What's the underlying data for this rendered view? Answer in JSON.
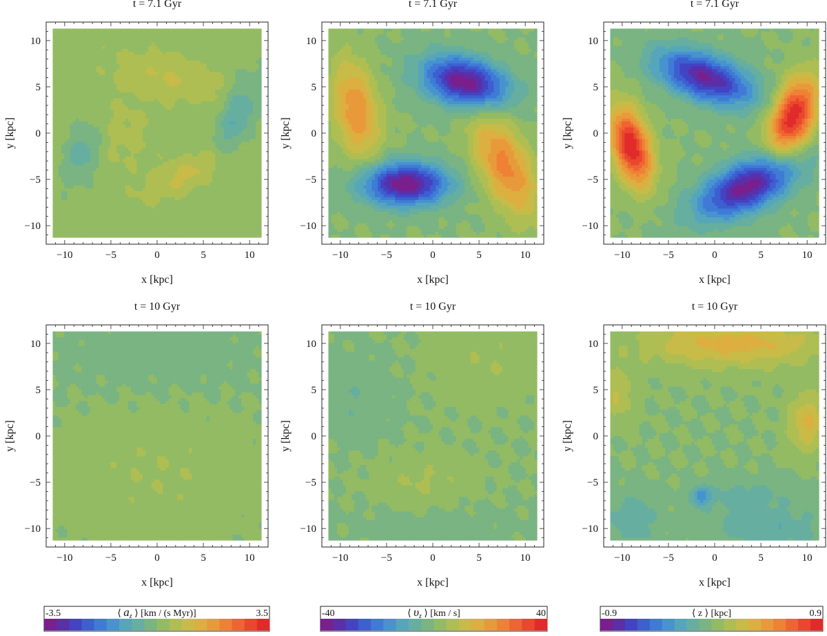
{
  "chart_data": {
    "type": "heatmap",
    "description_panels": "2 rows x 3 columns of contour maps of a galactic disc",
    "x_axis": {
      "label": "x [kpc]",
      "range": [
        -12,
        12
      ],
      "ticks": [
        -10,
        -5,
        0,
        5,
        10
      ]
    },
    "y_axis": {
      "label": "y [kpc]",
      "range": [
        -12,
        12
      ],
      "ticks": [
        -10,
        -5,
        0,
        5,
        10
      ]
    },
    "rows": [
      {
        "time_label": "t = 7.1 Gyr"
      },
      {
        "time_label": "t = 10 Gyr"
      }
    ],
    "columns": [
      {
        "quantity": "a_z",
        "colorbar": {
          "label_pre": "⟨ ",
          "symbol": "a",
          "subscript": "z",
          "label_post": " ⟩ [km / (s Myr)]",
          "min_label": "-3.5",
          "max_label": "3.5",
          "range": [
            -3.5,
            3.5
          ]
        }
      },
      {
        "quantity": "v_z",
        "colorbar": {
          "label_pre": "⟨ ",
          "symbol": "υ",
          "subscript": "z",
          "label_post": " ⟩ [km / s]",
          "min_label": "-40",
          "max_label": "40",
          "range": [
            -40,
            40
          ]
        }
      },
      {
        "quantity": "z",
        "colorbar": {
          "label_pre": "⟨ z ⟩ [kpc]",
          "symbol": "",
          "subscript": "",
          "label_post": "",
          "min_label": "-0.9",
          "max_label": "0.9",
          "range": [
            -0.9,
            0.9
          ]
        }
      }
    ],
    "colormap": [
      "#7a1f8e",
      "#5b2fa8",
      "#4343c4",
      "#3d5fd0",
      "#3f7bd6",
      "#4793cf",
      "#56a6bb",
      "#66aea0",
      "#79b482",
      "#93bb64",
      "#afbe52",
      "#c8bb48",
      "#ddae40",
      "#e89a3b",
      "#ef8135",
      "#ef6431",
      "#e9472e",
      "#e12b2a"
    ],
    "panels": [
      {
        "row": 0,
        "col": 0,
        "level": 0.05,
        "features": [
          {
            "cx": 8.7,
            "cy": 2.0,
            "sx": 1.3,
            "sy": 3.2,
            "rot": -20,
            "amp": -0.28
          },
          {
            "cx": -8.0,
            "cy": -2.0,
            "sx": 1.3,
            "sy": 2.5,
            "rot": -20,
            "amp": -0.24
          },
          {
            "cx": 1.5,
            "cy": 6.0,
            "sx": 4.5,
            "sy": 1.7,
            "rot": -15,
            "amp": 0.17
          },
          {
            "cx": 3.0,
            "cy": -4.5,
            "sx": 3.5,
            "sy": 1.3,
            "rot": 25,
            "amp": 0.2
          },
          {
            "cx": -4.0,
            "cy": 0.0,
            "sx": 2.5,
            "sy": 3.0,
            "rot": 0,
            "amp": 0.1
          }
        ]
      },
      {
        "row": 0,
        "col": 1,
        "level": 0.0,
        "features": [
          {
            "cx": 3.5,
            "cy": 5.5,
            "sx": 3.2,
            "sy": 1.8,
            "rot": -15,
            "amp": -1.0
          },
          {
            "cx": -3.0,
            "cy": -5.5,
            "sx": 3.2,
            "sy": 1.6,
            "rot": 0,
            "amp": -1.0
          },
          {
            "cx": -8.3,
            "cy": 2.5,
            "sx": 1.7,
            "sy": 3.8,
            "rot": 10,
            "amp": 0.55
          },
          {
            "cx": 7.8,
            "cy": -3.5,
            "sx": 1.9,
            "sy": 4.2,
            "rot": 25,
            "amp": 0.6
          }
        ]
      },
      {
        "row": 0,
        "col": 2,
        "level": 0.0,
        "features": [
          {
            "cx": -9.0,
            "cy": -1.5,
            "sx": 1.4,
            "sy": 3.0,
            "rot": 15,
            "amp": 1.0
          },
          {
            "cx": 8.5,
            "cy": 1.8,
            "sx": 1.6,
            "sy": 3.0,
            "rot": -20,
            "amp": 1.0
          },
          {
            "cx": -1.0,
            "cy": 6.0,
            "sx": 3.8,
            "sy": 1.7,
            "rot": -20,
            "amp": -0.9
          },
          {
            "cx": 3.5,
            "cy": -5.8,
            "sx": 4.0,
            "sy": 1.8,
            "rot": 25,
            "amp": -0.95
          }
        ]
      },
      {
        "row": 1,
        "col": 0,
        "level": 0.0,
        "features": [
          {
            "cx": 0.0,
            "cy": -4.0,
            "sx": 8.0,
            "sy": 5.0,
            "rot": 0,
            "amp": 0.1
          },
          {
            "cx": 0.0,
            "cy": 8.5,
            "sx": 9.0,
            "sy": 3.5,
            "rot": 0,
            "amp": -0.05
          }
        ]
      },
      {
        "row": 1,
        "col": 1,
        "level": 0.0,
        "features": [
          {
            "cx": 6.0,
            "cy": 8.0,
            "sx": 4.0,
            "sy": 3.0,
            "rot": 0,
            "amp": 0.1
          },
          {
            "cx": -1.0,
            "cy": -5.0,
            "sx": 3.5,
            "sy": 2.0,
            "rot": 0,
            "amp": 0.12
          },
          {
            "cx": -8.0,
            "cy": 4.0,
            "sx": 2.5,
            "sy": 3.0,
            "rot": 0,
            "amp": -0.1
          },
          {
            "cx": 0.0,
            "cy": -10.0,
            "sx": 6.0,
            "sy": 2.0,
            "rot": 0,
            "amp": -0.06
          }
        ]
      },
      {
        "row": 1,
        "col": 2,
        "level": 0.0,
        "features": [
          {
            "cx": 2.0,
            "cy": 10.0,
            "sx": 7.0,
            "sy": 1.8,
            "rot": 0,
            "amp": 0.38
          },
          {
            "cx": 10.0,
            "cy": 1.5,
            "sx": 1.4,
            "sy": 2.2,
            "rot": 0,
            "amp": 0.35
          },
          {
            "cx": -10.5,
            "cy": 4.5,
            "sx": 1.3,
            "sy": 2.0,
            "rot": 0,
            "amp": 0.22
          },
          {
            "cx": -1.5,
            "cy": -6.5,
            "sx": 0.7,
            "sy": 0.7,
            "rot": 0,
            "amp": -0.4
          },
          {
            "cx": 6.0,
            "cy": -10.0,
            "sx": 4.5,
            "sy": 1.6,
            "rot": 0,
            "amp": -0.2
          },
          {
            "cx": -9.0,
            "cy": -9.0,
            "sx": 2.0,
            "sy": 2.0,
            "rot": 0,
            "amp": -0.2
          },
          {
            "cx": 3.0,
            "cy": -6.5,
            "sx": 3.5,
            "sy": 1.3,
            "rot": 0,
            "amp": -0.15
          }
        ]
      }
    ]
  }
}
